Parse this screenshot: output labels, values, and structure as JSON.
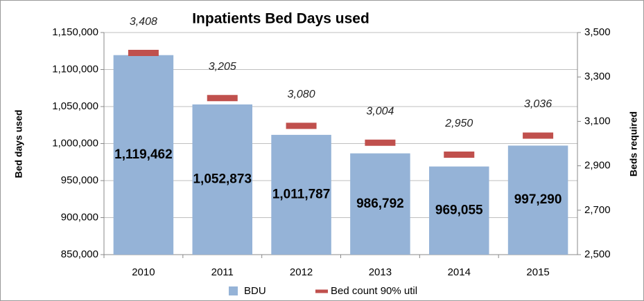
{
  "chart_data": {
    "type": "bar",
    "title": "Inpatients Bed Days used",
    "categories": [
      "2010",
      "2011",
      "2012",
      "2013",
      "2014",
      "2015"
    ],
    "series": [
      {
        "name": "BDU",
        "color": "#95b3d7",
        "values": [
          1119462,
          1052873,
          1011787,
          986792,
          969055,
          997290
        ],
        "value_labels": [
          "1,119,462",
          "1,052,873",
          "1,011,787",
          "986,792",
          "969,055",
          "997,290"
        ]
      },
      {
        "name": "Bed count 90% util",
        "color": "#c0504d",
        "axis": "y2",
        "marker": "dash",
        "values": [
          3408,
          3205,
          3080,
          3004,
          2950,
          3036
        ],
        "value_labels": [
          "3,408",
          "3,205",
          "3,080",
          "3,004",
          "2,950",
          "3,036"
        ]
      }
    ],
    "ylabel": "Bed days used",
    "y2label": "Beds required",
    "ylim": [
      850000,
      1150000
    ],
    "yticks": [
      {
        "value": 850000,
        "label": "850,000"
      },
      {
        "value": 900000,
        "label": "900,000"
      },
      {
        "value": 950000,
        "label": "950,000"
      },
      {
        "value": 1000000,
        "label": "1,000,000"
      },
      {
        "value": 1050000,
        "label": "1,050,000"
      },
      {
        "value": 1100000,
        "label": "1,100,000"
      },
      {
        "value": 1150000,
        "label": "1,150,000"
      }
    ],
    "y2lim": [
      2500,
      3500
    ],
    "y2ticks": [
      {
        "value": 2500,
        "label": "2,500"
      },
      {
        "value": 2700,
        "label": "2,700"
      },
      {
        "value": 2900,
        "label": "2,900"
      },
      {
        "value": 3100,
        "label": "3,100"
      },
      {
        "value": 3300,
        "label": "3,300"
      },
      {
        "value": 3500,
        "label": "3,500"
      }
    ],
    "grid": true,
    "legend": "bottom"
  }
}
